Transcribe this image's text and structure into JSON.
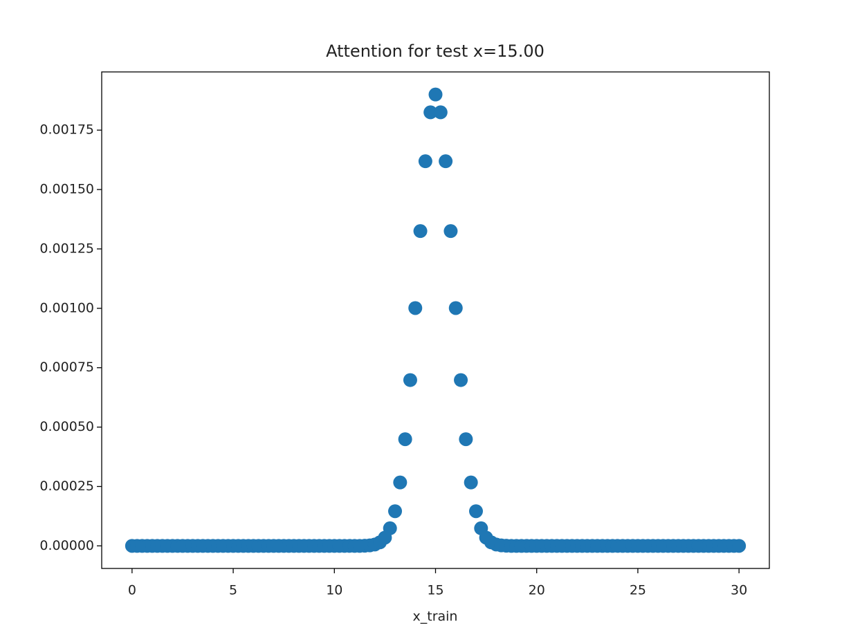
{
  "chart_data": {
    "type": "scatter",
    "title": "Attention for test x=15.00",
    "x_label": "x_train",
    "x": [
      0,
      0.25,
      0.5,
      0.75,
      1,
      1.25,
      1.5,
      1.75,
      2,
      2.25,
      2.5,
      2.75,
      3,
      3.25,
      3.5,
      3.75,
      4,
      4.25,
      4.5,
      4.75,
      5,
      5.25,
      5.5,
      5.75,
      6,
      6.25,
      6.5,
      6.75,
      7,
      7.25,
      7.5,
      7.75,
      8,
      8.25,
      8.5,
      8.75,
      9,
      9.25,
      9.5,
      9.75,
      10,
      10.25,
      10.5,
      10.75,
      11,
      11.25,
      11.5,
      11.75,
      12,
      12.25,
      12.5,
      12.75,
      13,
      13.25,
      13.5,
      13.75,
      14,
      14.25,
      14.5,
      14.75,
      15,
      15.25,
      15.5,
      15.75,
      16,
      16.25,
      16.5,
      16.75,
      17,
      17.25,
      17.5,
      17.75,
      18,
      18.25,
      18.5,
      18.75,
      19,
      19.25,
      19.5,
      19.75,
      20,
      20.25,
      20.5,
      20.75,
      21,
      21.25,
      21.5,
      21.75,
      22,
      22.25,
      22.5,
      22.75,
      23,
      23.25,
      23.5,
      23.75,
      24,
      24.25,
      24.5,
      24.75,
      25,
      25.25,
      25.5,
      25.75,
      26,
      26.25,
      26.5,
      26.75,
      27,
      27.25,
      27.5,
      27.75,
      28,
      28.25,
      28.5,
      28.75,
      29,
      29.25,
      29.5,
      29.75,
      30
    ],
    "series": [
      {
        "color": "#1f77b4",
        "values": [
          0,
          0,
          0,
          0,
          0,
          0,
          0,
          0,
          0,
          0,
          0,
          0,
          0,
          0,
          0,
          0,
          0,
          0,
          0,
          0,
          0,
          0,
          0,
          0,
          0,
          0,
          0,
          0,
          0,
          0,
          0,
          0,
          0,
          0,
          0,
          0,
          0,
          0,
          0,
          0,
          0,
          0,
          0,
          0,
          0,
          0,
          7e-07,
          2.2e-06,
          5.9e-06,
          1.49e-05,
          3.46e-05,
          7.41e-05,
          0.000146,
          0.000267,
          0.000449,
          0.000698,
          0.001001,
          0.001325,
          0.001619,
          0.001825,
          0.0019,
          0.001825,
          0.001619,
          0.001325,
          0.001001,
          0.000698,
          0.000449,
          0.000267,
          0.000146,
          7.41e-05,
          3.46e-05,
          1.49e-05,
          5.9e-06,
          2.2e-06,
          7e-07,
          0,
          0,
          0,
          0,
          0,
          0,
          0,
          0,
          0,
          0,
          0,
          0,
          0,
          0,
          0,
          0,
          0,
          0,
          0,
          0,
          0,
          0,
          0,
          0,
          0,
          0,
          0,
          0,
          0,
          0,
          0,
          0,
          0,
          0,
          0,
          0,
          0,
          0,
          0,
          0,
          0,
          0,
          0,
          0,
          0,
          0
        ]
      }
    ],
    "xlim": [
      -1.5,
      31.5
    ],
    "ylim": [
      -9.5e-05,
      0.001995
    ],
    "xticks": [
      0,
      5,
      10,
      15,
      20,
      25,
      30
    ],
    "yticks": [
      {
        "value": 0,
        "label": "0.00000"
      },
      {
        "value": 0.00025,
        "label": "0.00025"
      },
      {
        "value": 0.0005,
        "label": "0.00050"
      },
      {
        "value": 0.00075,
        "label": "0.00075"
      },
      {
        "value": 0.001,
        "label": "0.00100"
      },
      {
        "value": 0.00125,
        "label": "0.00125"
      },
      {
        "value": 0.0015,
        "label": "0.00150"
      },
      {
        "value": 0.00175,
        "label": "0.00175"
      }
    ],
    "grid": false
  }
}
